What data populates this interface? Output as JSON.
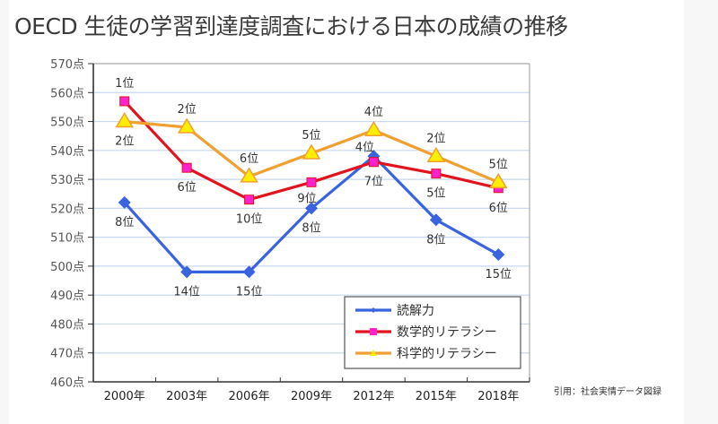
{
  "title": "OECD 生徒の学習到達度調査における日本の成績の推移",
  "source": "引用：社会実情データ図録",
  "chart_data": {
    "type": "line",
    "title": "OECD 生徒の学習到達度調査における日本の成績の推移",
    "xlabel": "",
    "ylabel": "",
    "categories": [
      "2000年",
      "2003年",
      "2006年",
      "2009年",
      "2012年",
      "2015年",
      "2018年"
    ],
    "ylim": [
      460,
      570
    ],
    "ystep": 10,
    "ytick_suffix": "点",
    "yticks": [
      "570点",
      "560点",
      "550点",
      "540点",
      "530点",
      "520点",
      "510点",
      "500点",
      "490点",
      "480点",
      "470点",
      "460点"
    ],
    "grid": true,
    "legend_position": "bottom-right",
    "series": [
      {
        "name": "読解力",
        "color": "#3a63e0",
        "marker": "diamond",
        "values": [
          522,
          498,
          498,
          520,
          538,
          516,
          504
        ],
        "ranks": [
          "8位",
          "14位",
          "15位",
          "8位",
          "4位",
          "8位",
          "15位"
        ],
        "rank_pos": [
          "below",
          "below",
          "below",
          "below",
          "above-left",
          "below",
          "below"
        ]
      },
      {
        "name": "数学的リテラシー",
        "color": "#e0141e",
        "marker_color": "#ff22cc",
        "marker": "square",
        "values": [
          557,
          534,
          523,
          529,
          536,
          532,
          527
        ],
        "ranks": [
          "1位",
          "6位",
          "10位",
          "9位",
          "7位",
          "5位",
          "6位"
        ],
        "rank_pos": [
          "above",
          "below",
          "below",
          "below-left",
          "below",
          "below",
          "below"
        ]
      },
      {
        "name": "科学的リテラシー",
        "color": "#f0a030",
        "marker_color": "#ffee00",
        "marker": "triangle",
        "values": [
          550,
          548,
          531,
          539,
          547,
          538,
          529
        ],
        "ranks": [
          "2位",
          "2位",
          "6位",
          "5位",
          "4位",
          "2位",
          "5位"
        ],
        "rank_pos": [
          "below",
          "above",
          "above",
          "above",
          "above",
          "above",
          "above"
        ]
      }
    ]
  }
}
